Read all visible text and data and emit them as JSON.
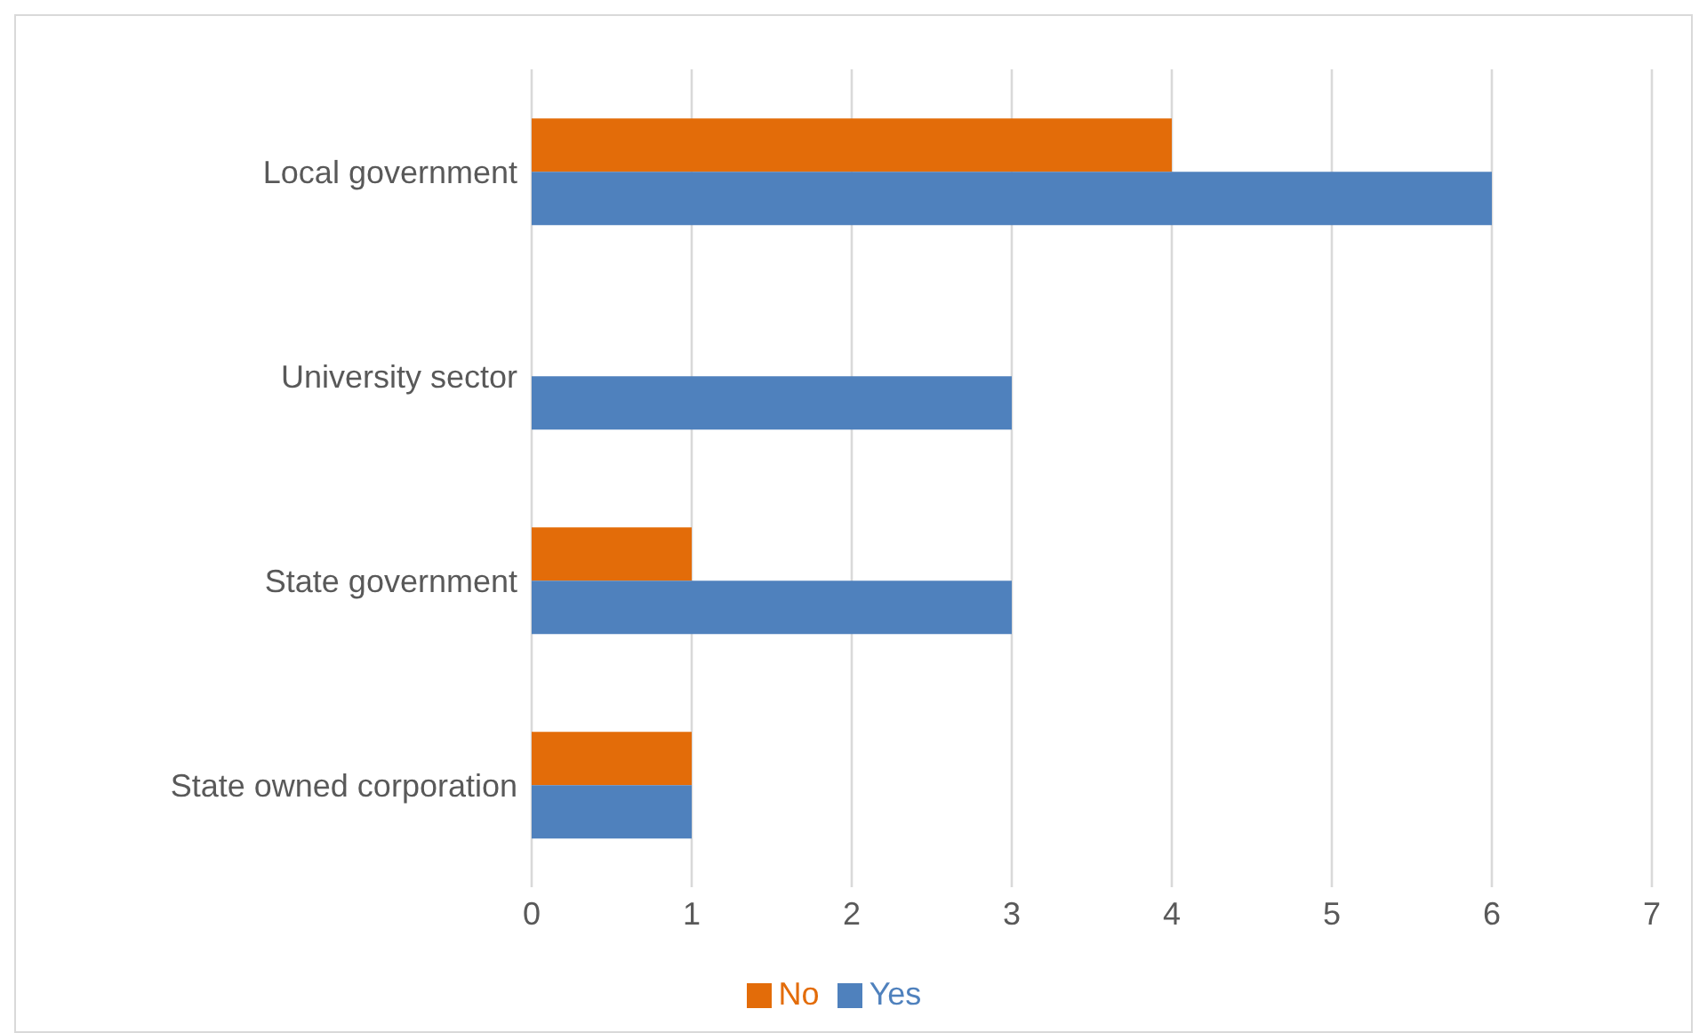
{
  "chart_data": {
    "type": "bar",
    "orientation": "horizontal",
    "categories": [
      "Local government",
      "University sector",
      "State government",
      "State owned corporation"
    ],
    "series": [
      {
        "name": "No",
        "color": "#e36c09",
        "values": [
          4,
          0,
          1,
          1
        ]
      },
      {
        "name": "Yes",
        "color": "#4f81bd",
        "values": [
          6,
          3,
          3,
          1
        ]
      }
    ],
    "xlim": [
      0,
      7
    ],
    "xticks": [
      0,
      1,
      2,
      3,
      4,
      5,
      6,
      7
    ],
    "grid": "x",
    "legend": "bottom"
  }
}
